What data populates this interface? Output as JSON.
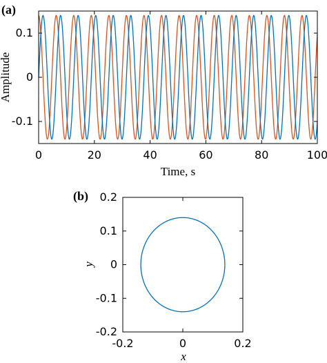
{
  "panels": [
    {
      "label": "(a)"
    },
    {
      "label": "(b)"
    }
  ],
  "chart_data": [
    {
      "type": "line",
      "xlabel": "Time, s",
      "ylabel": "Amplitude",
      "xlim": [
        0,
        100
      ],
      "ylim": [
        -0.15,
        0.15
      ],
      "xticks": [
        0,
        20,
        40,
        60,
        80,
        100
      ],
      "xtick_labels": [
        "0",
        "20",
        "40",
        "60",
        "80",
        "100"
      ],
      "yticks": [
        -0.1,
        0,
        0.1
      ],
      "ytick_labels": [
        "-0.1",
        "0",
        "0.1"
      ],
      "grid": false,
      "series": [
        {
          "color": "#D95319",
          "amplitude": 0.14,
          "period": 6.3,
          "phase_deg": 90
        },
        {
          "color": "#0072BD",
          "amplitude": 0.14,
          "period": 6.3,
          "phase_deg": 0
        }
      ]
    },
    {
      "type": "line",
      "xlabel": "x",
      "ylabel": "y",
      "xlim": [
        -0.2,
        0.2
      ],
      "ylim": [
        -0.2,
        0.2
      ],
      "xticks": [
        -0.2,
        0,
        0.2
      ],
      "xtick_labels": [
        "-0.2",
        "0",
        "0.2"
      ],
      "yticks": [
        -0.2,
        -0.1,
        0,
        0.1,
        0.2
      ],
      "ytick_labels": [
        "-0.2",
        "-0.1",
        "0",
        "0.1",
        "0.2"
      ],
      "grid": false,
      "series": [
        {
          "color": "#0072BD",
          "shape": "circle",
          "center": [
            0,
            0
          ],
          "radius": 0.14
        }
      ]
    }
  ]
}
